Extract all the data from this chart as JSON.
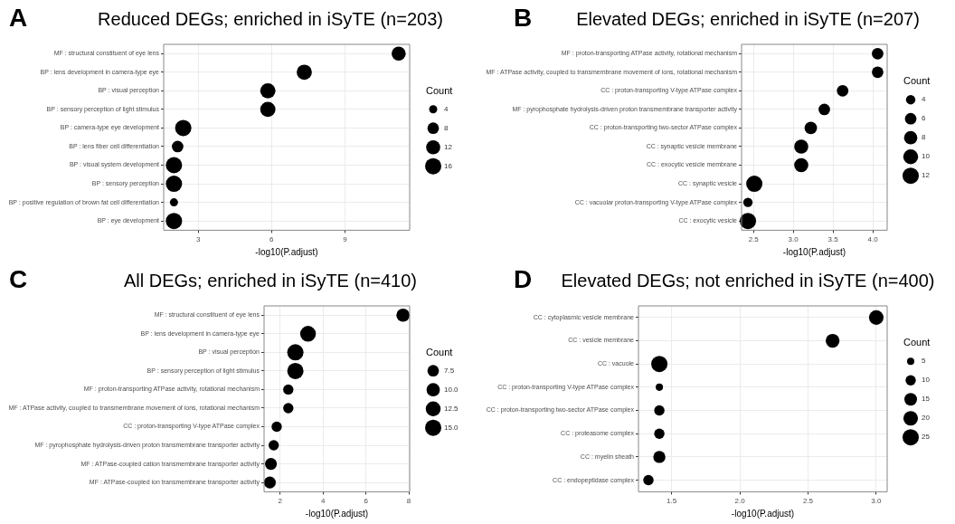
{
  "chart_data": [
    {
      "type": "bubble",
      "orientation": "horizontal",
      "title": "Reduced DEGs; enriched in iSyTE (n=203)",
      "annotations": [
        "A"
      ],
      "xlabel": "-log10(P.adjust)",
      "legend_title": "Count",
      "grid": true,
      "marker": "circle",
      "categories": [
        "MF : structural constituent of eye lens",
        "BP : lens development in camera-type eye",
        "BP : visual perception",
        "BP : sensory perception of light stimulus",
        "BP : camera-type eye development",
        "BP : lens fiber cell differentiation",
        "BP : visual system development",
        "BP : sensory perception",
        "BP : positive regulation of brown fat cell differentiation",
        "BP : eye development"
      ],
      "values": [
        11.2,
        7.34,
        5.85,
        5.85,
        2.39,
        2.16,
        2.01,
        2.01,
        2.01,
        2.01
      ],
      "sizes": [
        12,
        14,
        14,
        14,
        16,
        8,
        16,
        16,
        4,
        16
      ],
      "size_legend": [
        4,
        8,
        12,
        16
      ],
      "xlim": [
        1.59,
        11.65
      ],
      "xticks": [
        3,
        6,
        9
      ],
      "color": "#000000"
    },
    {
      "type": "bubble",
      "orientation": "horizontal",
      "title": "Elevated DEGs; enriched in iSyTE (n=207)",
      "annotations": [
        "B"
      ],
      "xlabel": "-log10(P.adjust)",
      "legend_title": "Count",
      "grid": true,
      "marker": "circle",
      "categories": [
        "MF : proton-transporting ATPase activity, rotational mechanism",
        "MF : ATPase activity, coupled to transmembrane movement of ions, rotational mechanism",
        "CC : proton-transporting V-type ATPase complex",
        "MF : pyrophosphate hydrolysis-driven proton transmembrane transporter activity",
        "CC : proton-transporting two-sector ATPase complex",
        "CC : synaptic vesicle membrane",
        "CC : exocytic vesicle membrane",
        "CC : synaptic vesicle",
        "CC : vacuolar proton-transporting V-type ATPase complex",
        "CC : exocytic vesicle"
      ],
      "values": [
        4.06,
        4.06,
        3.62,
        3.39,
        3.22,
        3.1,
        3.1,
        2.51,
        2.43,
        2.43
      ],
      "sizes": [
        6,
        6,
        6,
        6,
        7,
        9,
        9,
        12,
        4,
        12
      ],
      "size_legend": [
        4,
        6,
        8,
        10,
        12
      ],
      "xlim": [
        2.35,
        4.18
      ],
      "xticks": [
        2.5,
        {
          "value": 3,
          "label": "3.0"
        },
        3.5,
        {
          "value": 4,
          "label": "4.0"
        }
      ],
      "color": "#000000"
    },
    {
      "type": "bubble",
      "orientation": "horizontal",
      "title": "All DEGs; enriched in iSyTE (n=410)",
      "annotations": [
        "C"
      ],
      "xlabel": "-log10(P.adjust)",
      "legend_title": "Count",
      "grid": true,
      "marker": "circle",
      "categories": [
        "MF : structural constituent of eye lens",
        "BP : lens development in camera-type eye",
        "BP : visual perception",
        "BP : sensory perception of light stimulus",
        "MF : proton-transporting ATPase activity, rotational mechanism",
        "MF : ATPase activity, coupled to transmembrane movement of ions, rotational mechanism",
        "CC : proton-transporting V-type ATPase complex",
        "MF : pyrophosphate hydrolysis-driven proton transmembrane transporter activity",
        "MF : ATPase-coupled cation transmembrane transporter activity",
        "MF : ATPase-coupled ion transmembrane transporter activity"
      ],
      "values": [
        7.73,
        3.3,
        2.71,
        2.71,
        2.38,
        2.38,
        1.84,
        1.7,
        1.57,
        1.52
      ],
      "sizes": [
        10,
        14,
        15,
        15,
        6,
        6,
        6,
        6,
        8,
        8
      ],
      "size_legend": [
        7.5,
        {
          "value": 10,
          "label": "10.0"
        },
        12.5,
        {
          "value": 15,
          "label": "15.0"
        }
      ],
      "xlim": [
        1.25,
        8.04
      ],
      "xticks": [
        2,
        4,
        6,
        8
      ],
      "color": "#000000"
    },
    {
      "type": "bubble",
      "orientation": "horizontal",
      "title": "Elevated DEGs; not enriched in iSyTE (n=400)",
      "annotations": [
        "D"
      ],
      "xlabel": "-log10(P.adjust)",
      "legend_title": "Count",
      "grid": true,
      "marker": "circle",
      "categories": [
        "CC : cytoplasmic vesicle membrane",
        "CC : vesicle membrane",
        "CC : vacuole",
        "CC : proton-transporting V-type ATPase complex",
        "CC : proton-transporting two-sector ATPase complex",
        "CC : proteasome complex",
        "CC : myelin sheath",
        "CC : endopeptidase complex"
      ],
      "values": [
        3.0,
        2.68,
        1.41,
        1.41,
        1.41,
        1.41,
        1.41,
        1.33
      ],
      "sizes": [
        20,
        18,
        25,
        5,
        10,
        10,
        14,
        10
      ],
      "size_legend": [
        5,
        10,
        15,
        20,
        25
      ],
      "xlim": [
        1.257,
        3.08
      ],
      "xticks": [
        1.5,
        {
          "value": 2,
          "label": "2.0"
        },
        2.5,
        {
          "value": 3,
          "label": "3.0"
        }
      ],
      "color": "#000000"
    }
  ]
}
